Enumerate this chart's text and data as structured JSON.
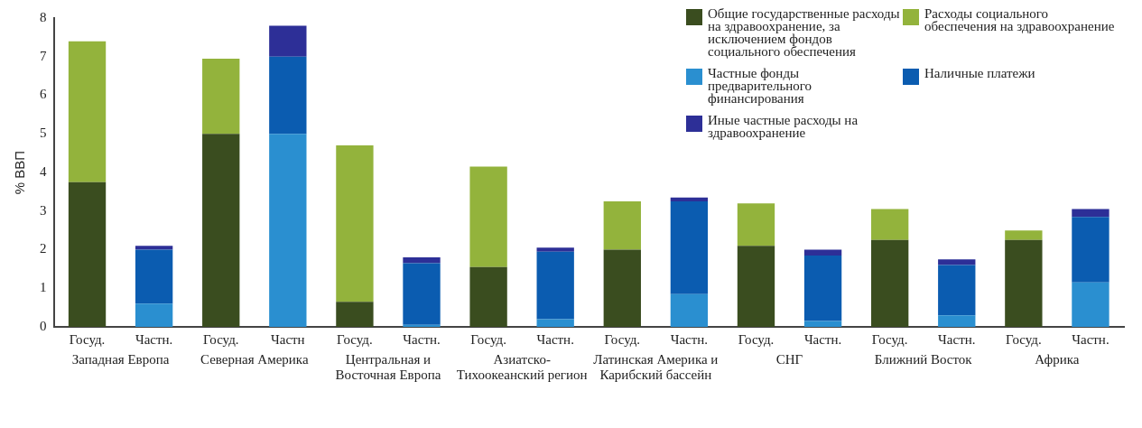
{
  "chart_data": {
    "type": "bar",
    "stacked": true,
    "ylabel": "% ВВП",
    "categories": [
      "Госуд.",
      "Частн.",
      "Госуд.",
      "Частн",
      "Госуд.",
      "Частн.",
      "Госуд.",
      "Частн.",
      "Госуд.",
      "Частн.",
      "Госуд.",
      "Частн.",
      "Госуд.",
      "Частн.",
      "Госуд.",
      "Частн."
    ],
    "series": [
      {
        "name": "Общие государственные расходы на здравоохранение, за исключением фондов социального обеспечения",
        "color": "#3a4d1f",
        "values": [
          3.75,
          null,
          5.0,
          null,
          0.65,
          null,
          1.55,
          null,
          2.0,
          null,
          2.1,
          null,
          2.25,
          null,
          2.25,
          null
        ]
      },
      {
        "name": "Расходы социального обеспечения на здравоохранение",
        "color": "#93b33c",
        "values": [
          3.65,
          null,
          1.95,
          null,
          4.05,
          null,
          2.6,
          null,
          1.25,
          null,
          1.1,
          null,
          0.8,
          null,
          0.25,
          null
        ]
      },
      {
        "name": "Частные фонды предварительного финансирования",
        "color": "#2a8fd0",
        "values": [
          null,
          0.6,
          null,
          5.0,
          null,
          0.05,
          null,
          0.2,
          null,
          0.85,
          null,
          0.15,
          null,
          0.3,
          null,
          1.15
        ]
      },
      {
        "name": "Наличные платежи",
        "color": "#0b5cb0",
        "values": [
          null,
          1.4,
          null,
          2.0,
          null,
          1.6,
          null,
          1.75,
          null,
          2.4,
          null,
          1.7,
          null,
          1.3,
          null,
          1.7
        ]
      },
      {
        "name": "Иные частные расходы на здравоохранение",
        "color": "#2d2f97",
        "values": [
          null,
          0.1,
          null,
          0.8,
          null,
          0.15,
          null,
          0.1,
          null,
          0.1,
          null,
          0.15,
          null,
          0.15,
          null,
          0.2
        ]
      }
    ],
    "ylim": [
      0,
      8
    ],
    "yticks": [
      0,
      1,
      2,
      3,
      4,
      5,
      6,
      7,
      8
    ],
    "grid": false,
    "legend": "top right",
    "annotations": [
      "Западная Европа",
      "Северная Америка",
      "Центральная и Восточная Европа",
      "Азиатско-Тихоокеанский регион",
      "Латинская Америка и Карибский бассейн",
      "СНГ",
      "Ближний Восток",
      "Африка"
    ]
  }
}
